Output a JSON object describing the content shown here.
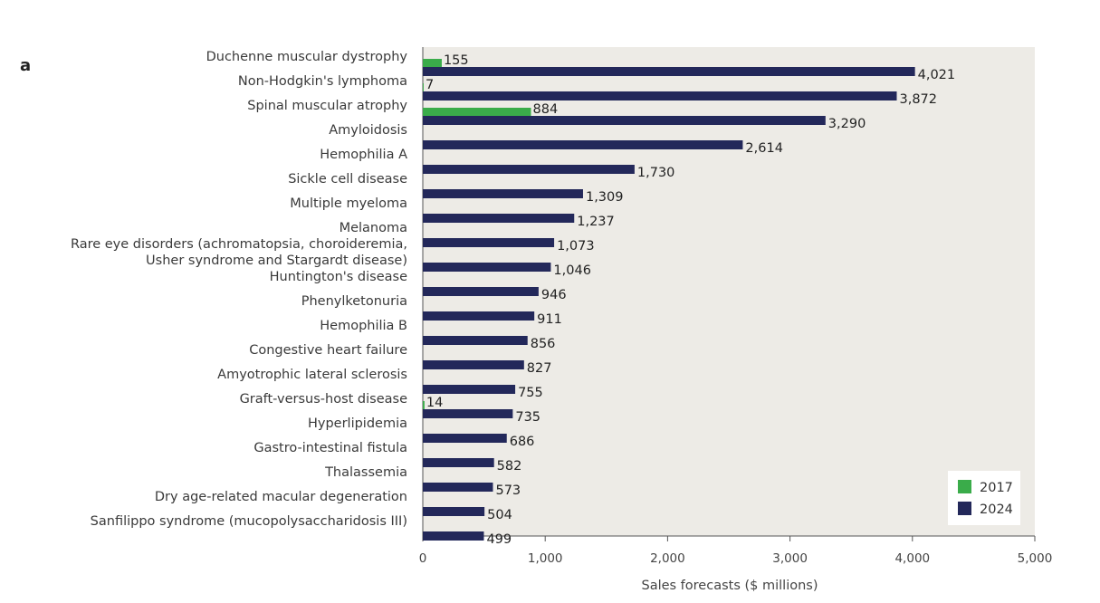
{
  "panel_label": "a",
  "chart_data": {
    "type": "bar",
    "orientation": "horizontal",
    "title": "",
    "xlabel": "Sales forecasts ($ millions)",
    "ylabel": "",
    "xlim": [
      0,
      5000
    ],
    "x_ticks": [
      0,
      1000,
      2000,
      3000,
      4000,
      5000
    ],
    "x_tick_labels": [
      "0",
      "1,000",
      "2,000",
      "3,000",
      "4,000",
      "5,000"
    ],
    "grid": false,
    "legend_position": "bottom-right",
    "colors": {
      "2017": "#3aac4a",
      "2024": "#23285a",
      "plot_background": "#edebe6"
    },
    "categories": [
      [
        "Duchenne muscular dystrophy"
      ],
      [
        "Non-Hodgkin's lymphoma"
      ],
      [
        "Spinal muscular atrophy"
      ],
      [
        "Amyloidosis"
      ],
      [
        "Hemophilia A"
      ],
      [
        "Sickle cell disease"
      ],
      [
        "Multiple myeloma"
      ],
      [
        "Melanoma"
      ],
      [
        "Rare eye disorders (achromatopsia, choroideremia,",
        "Usher syndrome and Stargardt disease)"
      ],
      [
        "Huntington's disease"
      ],
      [
        "Phenylketonuria"
      ],
      [
        "Hemophilia B"
      ],
      [
        "Congestive heart failure"
      ],
      [
        "Amyotrophic lateral sclerosis"
      ],
      [
        "Graft-versus-host disease"
      ],
      [
        "Hyperlipidemia"
      ],
      [
        "Gastro-intestinal fistula"
      ],
      [
        "Thalassemia"
      ],
      [
        "Dry age-related macular degeneration"
      ],
      [
        "Sanfilippo syndrome (mucopolysaccharidosis III)"
      ]
    ],
    "series": [
      {
        "name": "2017",
        "values": [
          155,
          7,
          884,
          null,
          null,
          null,
          null,
          null,
          null,
          null,
          null,
          null,
          null,
          null,
          14,
          null,
          null,
          null,
          null,
          null
        ],
        "labels": [
          "155",
          "7",
          "884",
          null,
          null,
          null,
          null,
          null,
          null,
          null,
          null,
          null,
          null,
          null,
          "14",
          null,
          null,
          null,
          null,
          null
        ]
      },
      {
        "name": "2024",
        "values": [
          4021,
          3872,
          3290,
          2614,
          1730,
          1309,
          1237,
          1073,
          1046,
          946,
          911,
          856,
          827,
          755,
          735,
          686,
          582,
          573,
          504,
          499
        ],
        "labels": [
          "4,021",
          "3,872",
          "3,290",
          "2,614",
          "1,730",
          "1,309",
          "1,237",
          "1,073",
          "1,046",
          "946",
          "911",
          "856",
          "827",
          "755",
          "735",
          "686",
          "582",
          "573",
          "504",
          "499"
        ]
      }
    ]
  }
}
